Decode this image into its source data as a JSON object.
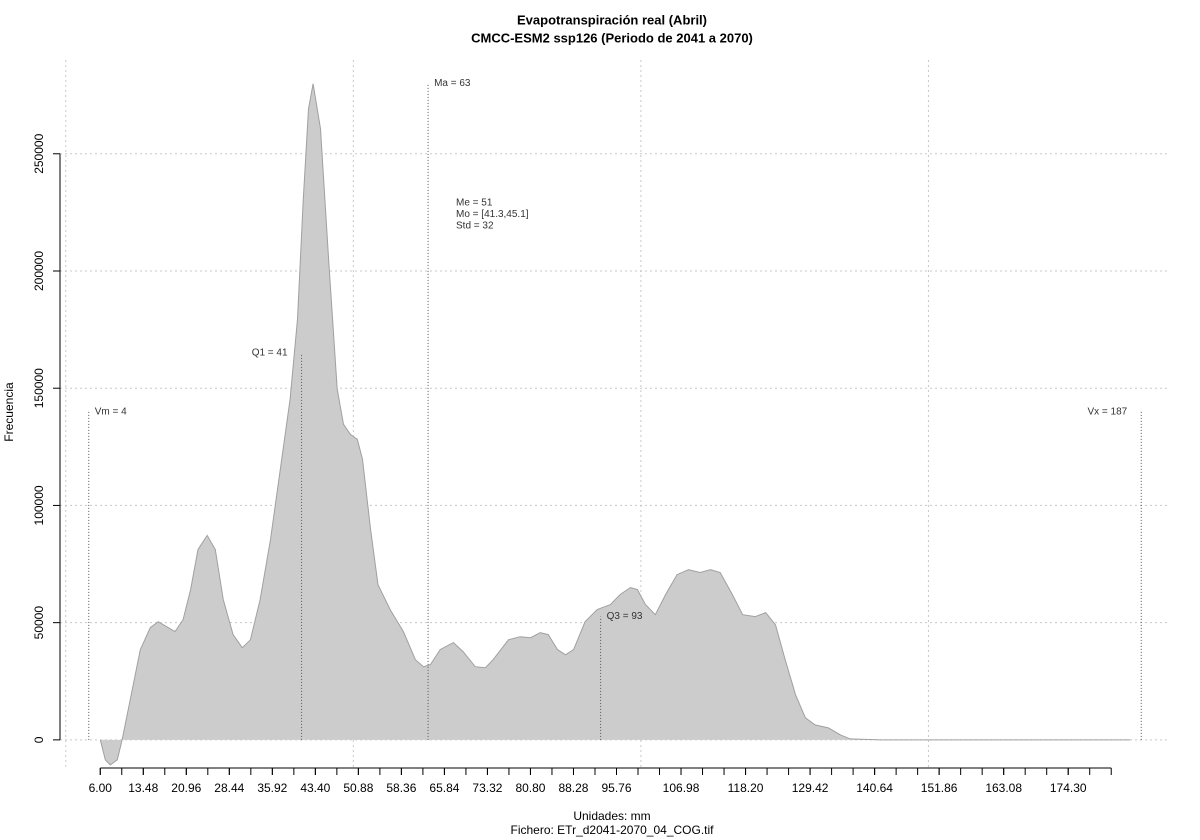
{
  "chart_data": {
    "type": "density",
    "title": "Evapotranspiración real (Abril)",
    "subtitle": "CMCC-ESM2 ssp126 (Periodo de 2041 a 2070)",
    "x_label": "Unidades: mm",
    "caption": "Fichero: ETr_d2041-2070_04_COG.tif",
    "y_label": "Frecuencia",
    "color": "#cccccc",
    "line_color": "#a0a0a0",
    "x": [
      6,
      6.87,
      7.74,
      8.96,
      9.8,
      11.2,
      12.96,
      14.7,
      16.1,
      17.8,
      19.0,
      20.4,
      21.7,
      23.0,
      24.6,
      26.0,
      27.4,
      29.1,
      30.7,
      32.1,
      33.8,
      35.6,
      37.3,
      39.0,
      40.3,
      41.3,
      42.2,
      43.0,
      44.3,
      45.7,
      47.2,
      48.3,
      49.5,
      50.7,
      51.6,
      53.0,
      54.3,
      56.4,
      58.7,
      60.8,
      62.2,
      63.4,
      65.1,
      67.4,
      69.1,
      71.2,
      72.96,
      74.3,
      76.96,
      79.0,
      80.8,
      82.5,
      83.9,
      85.5,
      86.9,
      88.3,
      90.3,
      92.4,
      94.7,
      96.4,
      98.2,
      99.4,
      100.8,
      102.5,
      104.3,
      106.3,
      108.3,
      110.3,
      112.1,
      113.8,
      115.9,
      117.7,
      119.9,
      121.7,
      123.4,
      125.1,
      126.9,
      128.6,
      130.3,
      132.6,
      134.7,
      136.4,
      141.7,
      185.1
    ],
    "values": [
      0,
      -8500,
      -10700,
      -8500,
      0,
      17100,
      38500,
      47900,
      50400,
      47900,
      46200,
      51300,
      64100,
      81200,
      87200,
      81200,
      59800,
      44900,
      39300,
      42700,
      59800,
      85500,
      115400,
      145300,
      179500,
      230800,
      269200,
      279900,
      260700,
      205100,
      149600,
      134600,
      130300,
      128200,
      119700,
      89700,
      66200,
      55600,
      46200,
      34200,
      31200,
      32100,
      38500,
      41500,
      37600,
      31200,
      30800,
      34200,
      42700,
      44000,
      43600,
      45700,
      44900,
      38500,
      36300,
      38500,
      50400,
      55600,
      57700,
      62000,
      65000,
      64100,
      57700,
      53400,
      62000,
      70500,
      72600,
      71400,
      72600,
      71400,
      62000,
      53400,
      52600,
      54300,
      49100,
      34200,
      19200,
      9400,
      6400,
      5100,
      2100,
      400,
      0,
      0
    ],
    "xlim": [
      -1,
      192
    ],
    "ylim": [
      -12000,
      290000
    ],
    "yticks": [
      0,
      50000,
      100000,
      150000,
      200000,
      250000
    ],
    "xticks": [
      {
        "value": 6.0,
        "label": "6.00"
      },
      {
        "value": 13.48,
        "label": "13.48"
      },
      {
        "value": 20.96,
        "label": "20.96"
      },
      {
        "value": 28.44,
        "label": "28.44"
      },
      {
        "value": 35.92,
        "label": "35.92"
      },
      {
        "value": 43.4,
        "label": "43.40"
      },
      {
        "value": 50.88,
        "label": "50.88"
      },
      {
        "value": 58.36,
        "label": "58.36"
      },
      {
        "value": 65.84,
        "label": "65.84"
      },
      {
        "value": 73.32,
        "label": "73.32"
      },
      {
        "value": 80.8,
        "label": "80.80"
      },
      {
        "value": 88.28,
        "label": "88.28"
      },
      {
        "value": 95.76,
        "label": "95.76"
      },
      {
        "value": 106.98,
        "label": "106.98"
      },
      {
        "value": 118.2,
        "label": "118.20"
      },
      {
        "value": 129.42,
        "label": "129.42"
      },
      {
        "value": 140.64,
        "label": "140.64"
      },
      {
        "value": 151.86,
        "label": "151.86"
      },
      {
        "value": 163.08,
        "label": "163.08"
      },
      {
        "value": 174.3,
        "label": "174.30"
      }
    ],
    "xticks_minor": [
      6,
      9.74,
      13.48,
      17.22,
      20.96,
      24.7,
      28.44,
      32.18,
      35.92,
      39.66,
      43.4,
      47.14,
      50.88,
      54.62,
      58.36,
      62.1,
      65.84,
      69.58,
      73.32,
      77.06,
      80.8,
      84.54,
      88.28,
      92.02,
      95.76,
      99.5,
      103.24,
      106.98,
      110.72,
      114.46,
      118.2,
      121.94,
      125.68,
      129.42,
      133.16,
      136.9,
      140.64,
      144.38,
      148.12,
      151.86,
      155.6,
      159.34,
      163.08,
      166.82,
      170.56,
      174.3,
      178.04,
      181.78
    ],
    "xgrid": [
      0,
      50,
      100,
      150
    ],
    "grid": true,
    "annotations": [
      {
        "label": "Vm = 4",
        "x": 4,
        "y": 140000
      },
      {
        "label": "Q1 = 41",
        "x": 41,
        "y": 165000
      },
      {
        "label": "Ma = 63",
        "x": 63,
        "y": 280000
      },
      {
        "label": "Q3 = 93",
        "x": 93,
        "y": 52600
      },
      {
        "label": "Vx = 187",
        "x": 187,
        "y": 140000
      }
    ],
    "stats": [
      "Me = 51",
      "Mo = [41.3,45.1]",
      "Std = 32"
    ]
  }
}
